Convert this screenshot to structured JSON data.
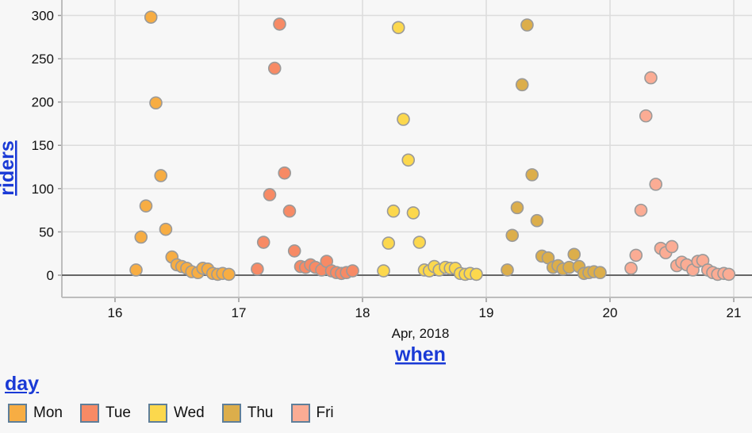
{
  "chart_data": {
    "type": "scatter",
    "xlabel": "when",
    "xlabel_sub": "Apr, 2018",
    "ylabel": "riders",
    "x_ticks": [
      16,
      17,
      18,
      19,
      20,
      21
    ],
    "y_ticks": [
      0,
      50,
      100,
      150,
      200,
      250,
      300
    ],
    "xlim": [
      15.58,
      21.14
    ],
    "ylim": [
      -25,
      310
    ],
    "grid": true,
    "legend_title": "day",
    "legend_placement": "bottom-left",
    "series": [
      {
        "name": "Mon",
        "color": "#f7ad43",
        "points": [
          [
            16.17,
            6
          ],
          [
            16.21,
            44
          ],
          [
            16.25,
            80
          ],
          [
            16.29,
            298
          ],
          [
            16.33,
            199
          ],
          [
            16.37,
            115
          ],
          [
            16.41,
            53
          ],
          [
            16.46,
            21
          ],
          [
            16.5,
            12
          ],
          [
            16.54,
            10
          ],
          [
            16.58,
            8
          ],
          [
            16.62,
            4
          ],
          [
            16.67,
            3
          ],
          [
            16.71,
            8
          ],
          [
            16.75,
            7
          ],
          [
            16.79,
            2
          ],
          [
            16.83,
            1
          ],
          [
            16.87,
            2
          ],
          [
            16.92,
            1
          ]
        ]
      },
      {
        "name": "Tue",
        "color": "#f78a65",
        "points": [
          [
            17.15,
            7
          ],
          [
            17.2,
            38
          ],
          [
            17.25,
            93
          ],
          [
            17.29,
            239
          ],
          [
            17.33,
            290
          ],
          [
            17.37,
            118
          ],
          [
            17.41,
            74
          ],
          [
            17.45,
            28
          ],
          [
            17.5,
            10
          ],
          [
            17.54,
            9
          ],
          [
            17.58,
            12
          ],
          [
            17.62,
            9
          ],
          [
            17.67,
            6
          ],
          [
            17.71,
            16
          ],
          [
            17.75,
            5
          ],
          [
            17.79,
            3
          ],
          [
            17.83,
            2
          ],
          [
            17.87,
            3
          ],
          [
            17.92,
            5
          ]
        ]
      },
      {
        "name": "Wed",
        "color": "#fcd84d",
        "points": [
          [
            18.17,
            5
          ],
          [
            18.21,
            37
          ],
          [
            18.25,
            74
          ],
          [
            18.29,
            286
          ],
          [
            18.33,
            180
          ],
          [
            18.37,
            133
          ],
          [
            18.41,
            72
          ],
          [
            18.46,
            38
          ],
          [
            18.5,
            6
          ],
          [
            18.54,
            5
          ],
          [
            18.58,
            10
          ],
          [
            18.62,
            6
          ],
          [
            18.67,
            9
          ],
          [
            18.71,
            8
          ],
          [
            18.75,
            8
          ],
          [
            18.79,
            2
          ],
          [
            18.83,
            1
          ],
          [
            18.87,
            2
          ],
          [
            18.92,
            1
          ]
        ]
      },
      {
        "name": "Thu",
        "color": "#dcae4b",
        "points": [
          [
            19.17,
            6
          ],
          [
            19.21,
            46
          ],
          [
            19.25,
            78
          ],
          [
            19.29,
            220
          ],
          [
            19.33,
            289
          ],
          [
            19.37,
            116
          ],
          [
            19.41,
            63
          ],
          [
            19.45,
            22
          ],
          [
            19.5,
            20
          ],
          [
            19.54,
            9
          ],
          [
            19.58,
            11
          ],
          [
            19.62,
            7
          ],
          [
            19.67,
            9
          ],
          [
            19.71,
            24
          ],
          [
            19.75,
            10
          ],
          [
            19.79,
            2
          ],
          [
            19.83,
            3
          ],
          [
            19.87,
            4
          ],
          [
            19.92,
            3
          ]
        ]
      },
      {
        "name": "Fri",
        "color": "#fbac94",
        "points": [
          [
            20.17,
            8
          ],
          [
            20.21,
            23
          ],
          [
            20.25,
            75
          ],
          [
            20.29,
            184
          ],
          [
            20.33,
            228
          ],
          [
            20.37,
            105
          ],
          [
            20.41,
            31
          ],
          [
            20.45,
            26
          ],
          [
            20.5,
            33
          ],
          [
            20.54,
            11
          ],
          [
            20.58,
            15
          ],
          [
            20.62,
            12
          ],
          [
            20.67,
            6
          ],
          [
            20.71,
            16
          ],
          [
            20.75,
            17
          ],
          [
            20.79,
            6
          ],
          [
            20.83,
            3
          ],
          [
            20.87,
            1
          ],
          [
            20.92,
            2
          ],
          [
            20.96,
            1
          ]
        ]
      }
    ]
  }
}
